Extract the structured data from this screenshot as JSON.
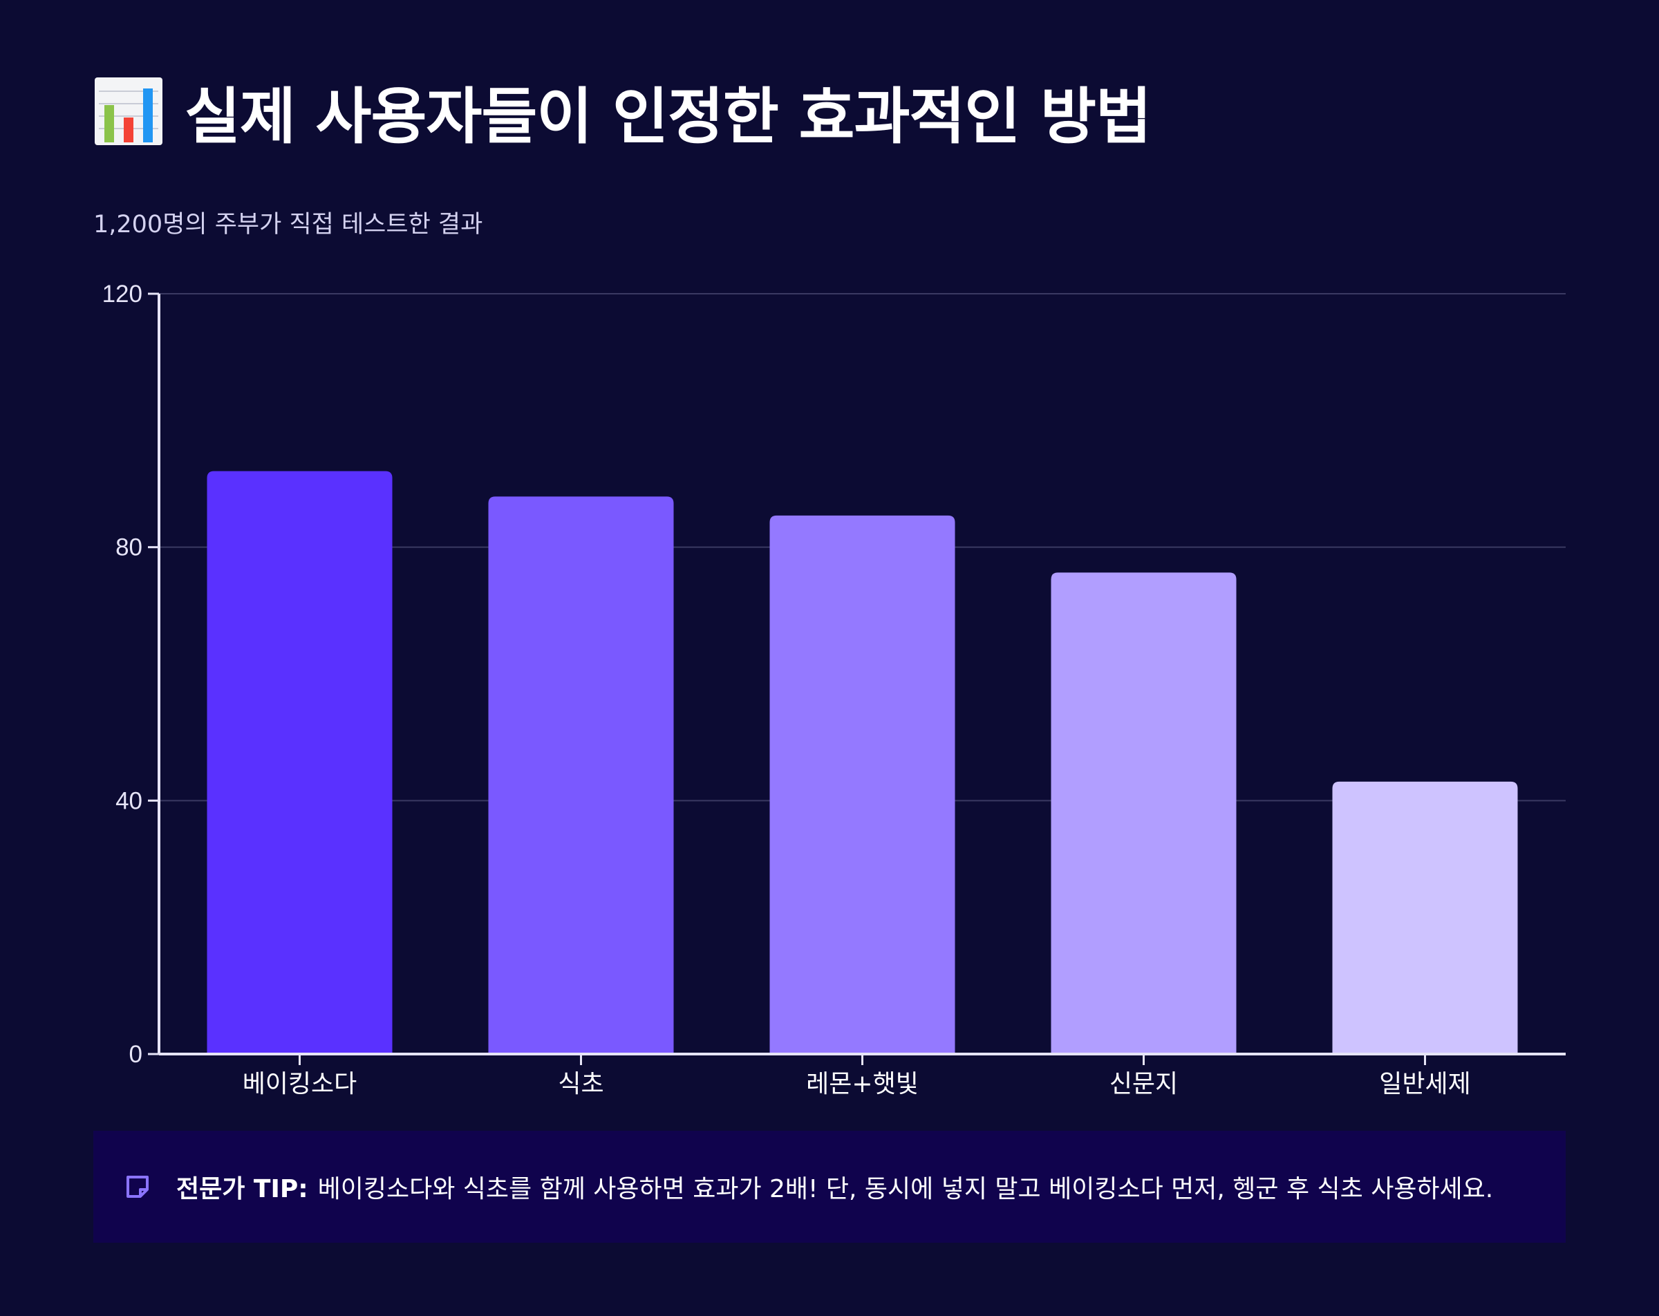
{
  "header": {
    "title_icon": "bar-chart-icon",
    "title": "실제 사용자들이 인정한 효과적인 방법",
    "subtitle": "1,200명의 주부가 직접 테스트한 결과"
  },
  "chart_data": {
    "type": "bar",
    "title": "실제 사용자들이 인정한 효과적인 방법",
    "subtitle": "1,200명의 주부가 직접 테스트한 결과",
    "xlabel": "",
    "ylabel": "",
    "categories": [
      "베이킹소다",
      "식초",
      "레몬+햇빛",
      "신문지",
      "일반세제"
    ],
    "values": [
      92,
      88,
      85,
      76,
      43
    ],
    "ylim": [
      0,
      120
    ],
    "yticks": [
      0,
      40,
      80,
      120
    ],
    "colors": [
      "#5a31ff",
      "#7a59ff",
      "#9479ff",
      "#b19eff",
      "#cec3ff"
    ],
    "grid": true,
    "legend": "none"
  },
  "tip": {
    "icon": "note-icon",
    "label": "전문가 TIP:",
    "text": "베이킹소다와 식초를 함께 사용하면 효과가 2배! 단, 동시에 넣지 말고 베이킹소다 먼저, 헹군 후 식초 사용하세요.",
    "accent": "#8b74ff"
  }
}
